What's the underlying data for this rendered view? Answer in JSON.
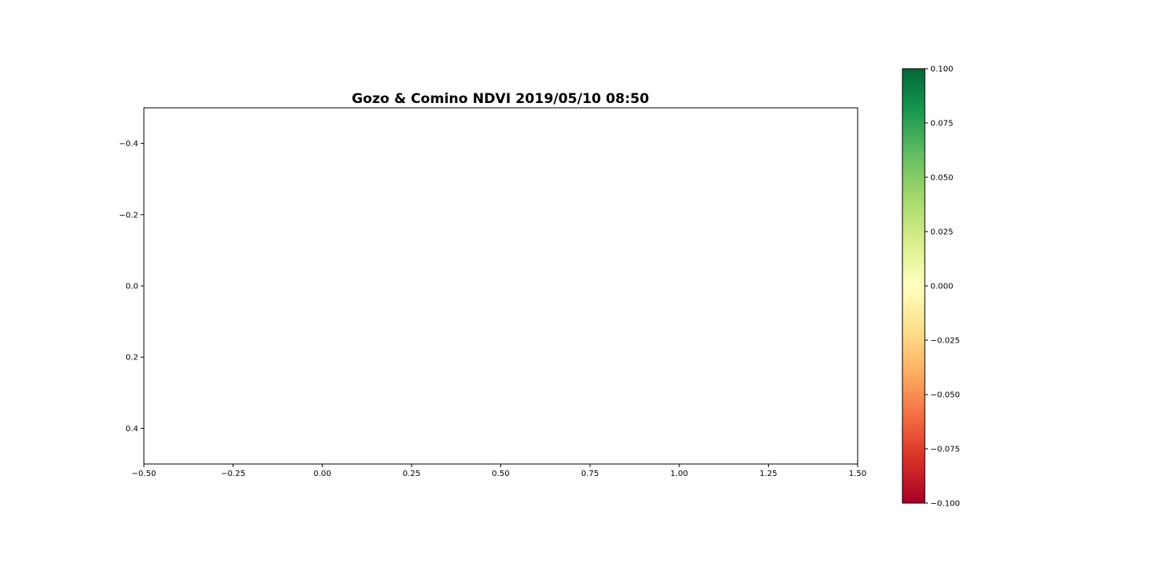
{
  "chart_data": {
    "type": "heatmap",
    "title": "Gozo & Comino NDVI 2019/05/10 08:50",
    "xlabel": "",
    "ylabel": "",
    "xlim": [
      -0.5,
      1.5
    ],
    "ylim": [
      0.5,
      -0.5
    ],
    "y_inverted": true,
    "grid": false,
    "x_ticks": [
      -0.5,
      -0.25,
      0.0,
      0.25,
      0.5,
      0.75,
      1.0,
      1.25,
      1.5
    ],
    "x_tick_labels": [
      "−0.50",
      "−0.25",
      "0.00",
      "0.25",
      "0.50",
      "0.75",
      "1.00",
      "1.25",
      "1.50"
    ],
    "y_ticks": [
      -0.4,
      -0.2,
      0.0,
      0.2,
      0.4
    ],
    "y_tick_labels": [
      "−0.4",
      "−0.2",
      "0.0",
      "0.2",
      "0.4"
    ],
    "colorbar": {
      "colormap": "RdYlGn",
      "range": [
        -0.1,
        0.1
      ],
      "ticks": [
        0.1,
        0.075,
        0.05,
        0.025,
        0.0,
        -0.025,
        -0.05,
        -0.075,
        -0.1
      ],
      "tick_labels": [
        "0.100",
        "0.075",
        "0.050",
        "0.025",
        "0.000",
        "−0.025",
        "−0.050",
        "−0.075",
        "−0.100"
      ],
      "colors": [
        "#a50026",
        "#d73027",
        "#f46d43",
        "#fdae61",
        "#fee08b",
        "#ffffbf",
        "#d9ef8b",
        "#a6d96a",
        "#66bd63",
        "#1a9850",
        "#006837"
      ]
    },
    "values": []
  }
}
